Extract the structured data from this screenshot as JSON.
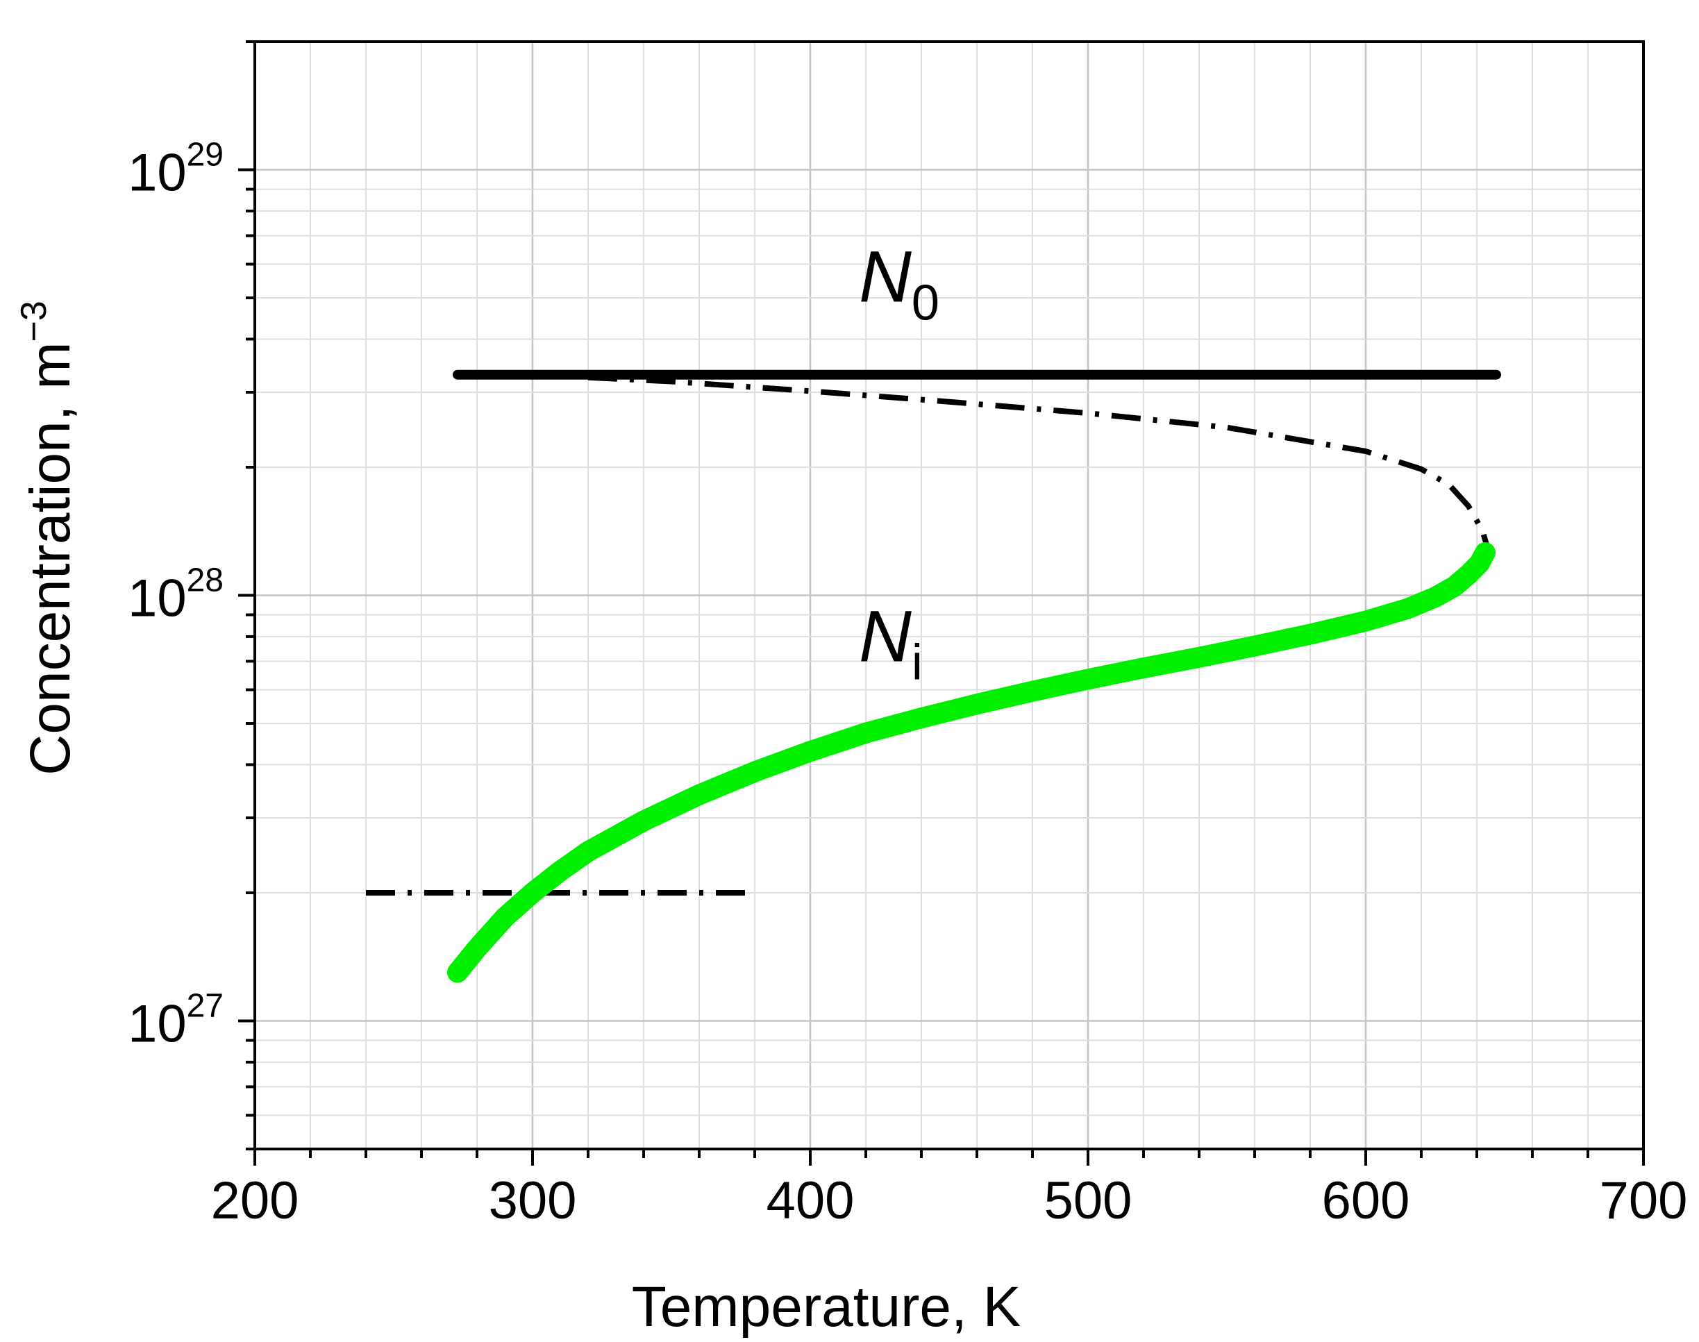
{
  "chart_data": {
    "type": "line",
    "title": "",
    "xlabel": "Temperature, K",
    "ylabel": {
      "base": "Concentration, m",
      "sup": "−3"
    },
    "xlim": [
      200,
      700
    ],
    "ylim": [
      5e+26,
      2e+29
    ],
    "yscale": "log",
    "grid": true,
    "legend": "none",
    "x_ticks": [
      {
        "value": 200,
        "label": "200"
      },
      {
        "value": 300,
        "label": "300"
      },
      {
        "value": 400,
        "label": "400"
      },
      {
        "value": 500,
        "label": "500"
      },
      {
        "value": 600,
        "label": "600"
      },
      {
        "value": 700,
        "label": "700"
      }
    ],
    "y_ticks": [
      {
        "value": 1e+27,
        "base": "10",
        "exp": "27"
      },
      {
        "value": 1e+28,
        "base": "10",
        "exp": "28"
      },
      {
        "value": 1e+29,
        "base": "10",
        "exp": "29"
      }
    ],
    "annotations": [
      {
        "letter": "N",
        "sub": "0",
        "x": 405,
        "y": 4.9e+28
      },
      {
        "letter": "N",
        "sub": "i",
        "x": 405,
        "y": 7e+27
      }
    ],
    "series": [
      {
        "style": "solid",
        "color": "#000000",
        "x": [
          273,
          647
        ],
        "y": [
          3.3e+28,
          3.3e+28
        ]
      },
      {
        "style": "dashdot",
        "color": "#000000",
        "x": [
          320,
          350,
          400,
          450,
          500,
          550,
          600,
          620,
          630,
          637,
          642,
          645
        ],
        "y": [
          3.25e+28,
          3.18e+28,
          3.02e+28,
          2.85e+28,
          2.68e+28,
          2.48e+28,
          2.18e+28,
          1.98e+28,
          1.82e+28,
          1.62e+28,
          1.42e+28,
          1.22e+28
        ]
      },
      {
        "style": "dashdot",
        "color": "#000000",
        "x": [
          240,
          380
        ],
        "y": [
          2e+27,
          2e+27
        ]
      },
      {
        "style": "thick",
        "color": "#00ee00",
        "x": [
          273,
          280,
          290,
          300,
          310,
          320,
          340,
          360,
          380,
          400,
          420,
          440,
          460,
          480,
          500,
          520,
          540,
          560,
          580,
          600,
          615,
          625,
          632,
          637,
          641,
          643
        ],
        "y": [
          1.3e+27,
          1.48e+27,
          1.75e+27,
          2e+27,
          2.25e+27,
          2.5e+27,
          2.95e+27,
          3.4e+27,
          3.85e+27,
          4.3e+27,
          4.75e+27,
          5.15e+27,
          5.55e+27,
          5.95e+27,
          6.35e+27,
          6.75e+27,
          7.15e+27,
          7.6e+27,
          8.1e+27,
          8.7e+27,
          9.3e+27,
          9.9e+27,
          1.05e+28,
          1.12e+28,
          1.19e+28,
          1.26e+28
        ]
      }
    ]
  }
}
